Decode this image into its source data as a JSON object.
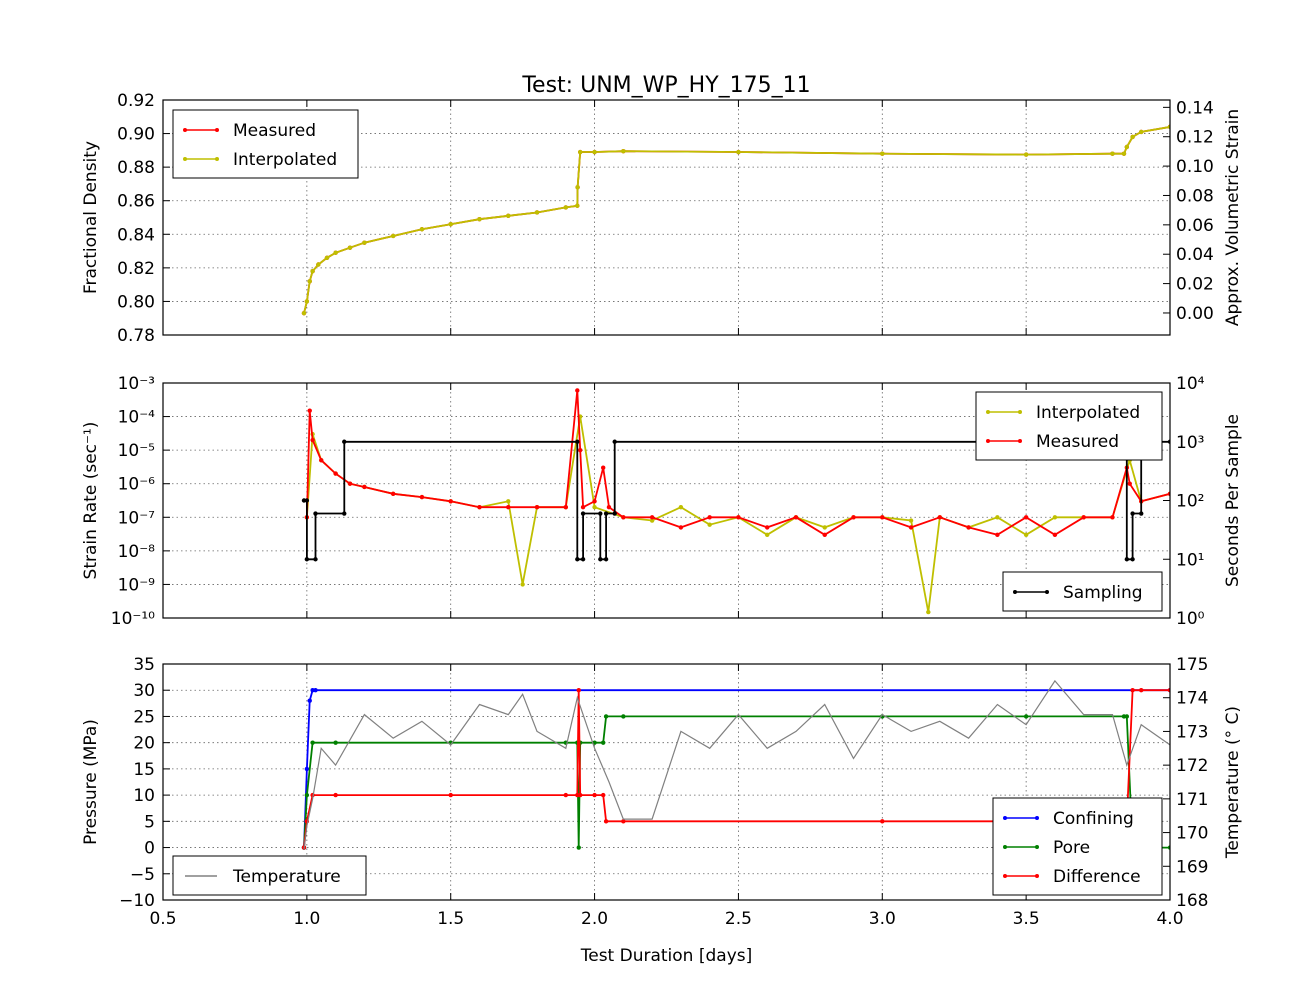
{
  "title": "Test: UNM_WP_HY_175_11",
  "xlabel": "Test Duration [days]",
  "chart_data": [
    {
      "type": "line",
      "ylabel": "Fractional Density",
      "ylabel2": "Approx. Volumetric Strain",
      "xlim": [
        0.5,
        4.0
      ],
      "ylim": [
        0.78,
        0.92
      ],
      "ylim2": [
        -0.015,
        0.145
      ],
      "x_ticks": [
        "0.5",
        "1.0",
        "1.5",
        "2.0",
        "2.5",
        "3.0",
        "3.5",
        "4.0"
      ],
      "y_ticks": [
        "0.78",
        "0.80",
        "0.82",
        "0.84",
        "0.86",
        "0.88",
        "0.90",
        "0.92"
      ],
      "y2_ticks": [
        "0.00",
        "0.02",
        "0.04",
        "0.06",
        "0.08",
        "0.10",
        "0.12",
        "0.14"
      ],
      "legend": "top-left",
      "grid": true,
      "series": [
        {
          "name": "Measured",
          "color": "#ff0000",
          "x": [
            0.99,
            1.0,
            1.01,
            1.02,
            1.04,
            1.07,
            1.1,
            1.15,
            1.2,
            1.3,
            1.4,
            1.5,
            1.6,
            1.7,
            1.8,
            1.9,
            1.94,
            1.941,
            1.95,
            2.0,
            2.1,
            2.5,
            3.0,
            3.5,
            3.8,
            3.84,
            3.85,
            3.87,
            3.9,
            4.0
          ],
          "y": [
            0.793,
            0.8,
            0.812,
            0.818,
            0.822,
            0.826,
            0.829,
            0.832,
            0.835,
            0.839,
            0.843,
            0.846,
            0.849,
            0.851,
            0.853,
            0.856,
            0.857,
            0.868,
            0.889,
            0.889,
            0.8895,
            0.889,
            0.888,
            0.8875,
            0.888,
            0.888,
            0.892,
            0.898,
            0.901,
            0.904
          ]
        },
        {
          "name": "Interpolated",
          "color": "#bfbf00",
          "x": [
            0.99,
            1.0,
            1.01,
            1.02,
            1.04,
            1.07,
            1.1,
            1.15,
            1.2,
            1.3,
            1.4,
            1.5,
            1.6,
            1.7,
            1.8,
            1.9,
            1.94,
            1.941,
            1.95,
            2.0,
            2.1,
            2.5,
            3.0,
            3.5,
            3.8,
            3.84,
            3.85,
            3.87,
            3.9,
            4.0
          ],
          "y": [
            0.793,
            0.8,
            0.812,
            0.818,
            0.822,
            0.826,
            0.829,
            0.832,
            0.835,
            0.839,
            0.843,
            0.846,
            0.849,
            0.851,
            0.853,
            0.856,
            0.857,
            0.868,
            0.889,
            0.889,
            0.8895,
            0.889,
            0.888,
            0.8875,
            0.888,
            0.888,
            0.892,
            0.898,
            0.901,
            0.904
          ]
        }
      ]
    },
    {
      "type": "line",
      "ylabel": "Strain Rate (sec⁻¹)",
      "ylabel2": "Seconds Per Sample",
      "xlim": [
        0.5,
        4.0
      ],
      "y_scale": "log",
      "ylim": [
        1e-10,
        0.001
      ],
      "ylim2": [
        1,
        10000
      ],
      "y_ticks": [
        "10⁻¹⁰",
        "10⁻⁹",
        "10⁻⁸",
        "10⁻⁷",
        "10⁻⁶",
        "10⁻⁵",
        "10⁻⁴",
        "10⁻³"
      ],
      "y2_ticks": [
        "10⁰",
        "10¹",
        "10²",
        "10³",
        "10⁴"
      ],
      "legend": "top-right / bottom-right",
      "grid": true,
      "series": [
        {
          "name": "Interpolated",
          "color": "#bfbf00",
          "x": [
            1.0,
            1.02,
            1.05,
            1.1,
            1.15,
            1.2,
            1.3,
            1.4,
            1.5,
            1.6,
            1.7,
            1.75,
            1.8,
            1.9,
            1.95,
            2.0,
            2.1,
            2.2,
            2.3,
            2.4,
            2.5,
            2.6,
            2.7,
            2.8,
            2.9,
            3.0,
            3.1,
            3.16,
            3.2,
            3.3,
            3.4,
            3.5,
            3.6,
            3.7,
            3.8,
            3.86,
            3.9,
            4.0
          ],
          "y": [
            1e-07,
            3e-05,
            5e-06,
            2e-06,
            1e-06,
            8e-07,
            5e-07,
            4e-07,
            3e-07,
            2e-07,
            3e-07,
            1e-09,
            2e-07,
            2e-07,
            0.0001,
            2e-07,
            1e-07,
            8e-08,
            2e-07,
            6e-08,
            1e-07,
            3e-08,
            1e-07,
            5e-08,
            1e-07,
            1e-07,
            8e-08,
            1.5e-10,
            1e-07,
            5e-08,
            1e-07,
            3e-08,
            1e-07,
            1e-07,
            1e-07,
            5e-06,
            3e-07,
            5e-07
          ]
        },
        {
          "name": "Measured",
          "color": "#ff0000",
          "x": [
            1.0,
            1.01,
            1.02,
            1.05,
            1.1,
            1.15,
            1.2,
            1.3,
            1.4,
            1.5,
            1.6,
            1.7,
            1.8,
            1.9,
            1.94,
            1.95,
            1.96,
            2.0,
            2.03,
            2.05,
            2.1,
            2.2,
            2.3,
            2.4,
            2.5,
            2.6,
            2.7,
            2.8,
            2.9,
            3.0,
            3.1,
            3.2,
            3.3,
            3.4,
            3.5,
            3.6,
            3.7,
            3.8,
            3.85,
            3.86,
            3.9,
            4.0
          ],
          "y": [
            1e-07,
            0.00015,
            2e-05,
            5e-06,
            2e-06,
            1e-06,
            8e-07,
            5e-07,
            4e-07,
            3e-07,
            2e-07,
            2e-07,
            2e-07,
            2e-07,
            0.0006,
            1e-05,
            2e-07,
            3e-07,
            3e-06,
            2e-07,
            1e-07,
            1e-07,
            5e-08,
            1e-07,
            1e-07,
            5e-08,
            1e-07,
            3e-08,
            1e-07,
            1e-07,
            5e-08,
            1e-07,
            5e-08,
            3e-08,
            1e-07,
            3e-08,
            1e-07,
            1e-07,
            3e-06,
            1e-06,
            3e-07,
            5e-07
          ]
        },
        {
          "name": "Sampling",
          "color": "#000000",
          "axis": "right",
          "x": [
            0.99,
            1.0,
            1.0,
            1.03,
            1.03,
            1.13,
            1.13,
            1.94,
            1.94,
            1.96,
            1.96,
            2.02,
            2.02,
            2.04,
            2.04,
            2.07,
            2.07,
            3.85,
            3.85,
            3.87,
            3.87,
            3.9,
            3.9,
            4.0
          ],
          "y": [
            100,
            100,
            10,
            10,
            60,
            60,
            1000,
            1000,
            10,
            10,
            60,
            60,
            10,
            10,
            60,
            60,
            1000,
            1000,
            10,
            10,
            60,
            60,
            1000,
            1000
          ]
        }
      ]
    },
    {
      "type": "line",
      "ylabel": "Pressure (MPa)",
      "ylabel2": "Temperature (° C)",
      "xlim": [
        0.5,
        4.0
      ],
      "ylim": [
        -10,
        35
      ],
      "ylim2": [
        168,
        175
      ],
      "y_ticks": [
        "−10",
        "−5",
        "0",
        "5",
        "10",
        "15",
        "20",
        "25",
        "30",
        "35"
      ],
      "y2_ticks": [
        "168",
        "169",
        "170",
        "171",
        "172",
        "173",
        "174",
        "175"
      ],
      "legend": "bottom-right / bottom-left",
      "grid": true,
      "series": [
        {
          "name": "Confining",
          "color": "#0000ff",
          "x": [
            0.99,
            1.0,
            1.01,
            1.02,
            1.03,
            4.0
          ],
          "y": [
            0,
            15,
            28,
            30,
            30,
            30
          ]
        },
        {
          "name": "Pore",
          "color": "#008000",
          "x": [
            0.99,
            1.0,
            1.02,
            1.1,
            1.5,
            1.9,
            1.94,
            1.945,
            1.95,
            2.0,
            2.03,
            2.04,
            2.1,
            3.0,
            3.5,
            3.84,
            3.85,
            3.87,
            3.9,
            4.0
          ],
          "y": [
            0,
            10,
            20,
            20,
            20,
            20,
            20,
            0,
            20,
            20,
            20,
            25,
            25,
            25,
            25,
            25,
            25,
            0,
            0,
            0
          ]
        },
        {
          "name": "Difference",
          "color": "#ff0000",
          "x": [
            0.99,
            1.0,
            1.02,
            1.1,
            1.5,
            1.9,
            1.94,
            1.945,
            1.95,
            2.0,
            2.03,
            2.04,
            2.1,
            3.0,
            3.5,
            3.84,
            3.85,
            3.87,
            3.9,
            4.0
          ],
          "y": [
            0,
            5,
            10,
            10,
            10,
            10,
            10,
            30,
            10,
            10,
            10,
            5,
            5,
            5,
            5,
            5,
            5,
            30,
            30,
            30
          ]
        },
        {
          "name": "Temperature",
          "color": "#808080",
          "axis": "right",
          "x": [
            0.99,
            1.0,
            1.02,
            1.05,
            1.1,
            1.2,
            1.3,
            1.4,
            1.5,
            1.6,
            1.7,
            1.75,
            1.8,
            1.9,
            1.94,
            2.0,
            2.05,
            2.1,
            2.2,
            2.3,
            2.4,
            2.5,
            2.6,
            2.7,
            2.8,
            2.9,
            3.0,
            3.1,
            3.2,
            3.3,
            3.4,
            3.5,
            3.6,
            3.7,
            3.8,
            3.85,
            3.9,
            4.0
          ],
          "y": [
            169.5,
            170.2,
            171,
            172.5,
            172,
            173.5,
            172.8,
            173.3,
            172.6,
            173.8,
            173.5,
            174.1,
            173,
            172.5,
            174,
            172.5,
            171.5,
            170.4,
            170.4,
            173,
            172.5,
            173.5,
            172.5,
            173,
            173.8,
            172.2,
            173.5,
            173,
            173.3,
            172.8,
            173.8,
            173.2,
            174.5,
            173.5,
            173.5,
            172,
            173.2,
            172.6
          ]
        }
      ]
    }
  ]
}
